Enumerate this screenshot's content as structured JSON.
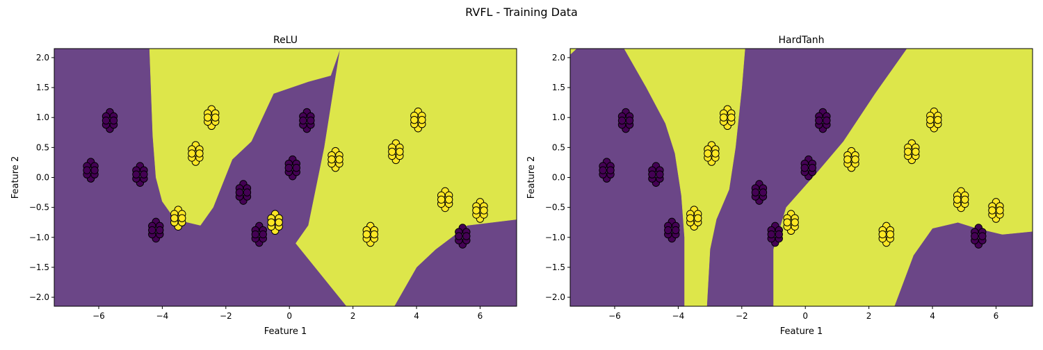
{
  "figure": {
    "suptitle": "RVFL - Training Data"
  },
  "colors": {
    "class0_region": "#6b4687",
    "class1_region": "#dde64a",
    "class0_point": "#440154",
    "class1_point": "#fde725",
    "edge": "#000000"
  },
  "chart_data": [
    {
      "type": "scatter",
      "title": "ReLU",
      "xlabel": "Feature 1",
      "ylabel": "Feature 2",
      "xlim": [
        -7.4,
        7.15
      ],
      "ylim": [
        -2.15,
        2.15
      ],
      "xticks": [
        -6,
        -4,
        -2,
        0,
        2,
        4,
        6
      ],
      "yticks": [
        -2.0,
        -1.5,
        -1.0,
        -0.5,
        0.0,
        0.5,
        1.0,
        1.5,
        2.0
      ],
      "grid": false,
      "decision_region": "filled contour: yellow = class 1, purple = class 0",
      "class1_boundary": [
        [
          -4.4,
          2.15
        ],
        [
          1.6,
          2.15
        ],
        [
          1.3,
          1.7
        ],
        [
          0.6,
          1.6
        ],
        [
          -0.5,
          1.4
        ],
        [
          -1.2,
          0.6
        ],
        [
          -1.8,
          0.3
        ],
        [
          -2.4,
          -0.5
        ],
        [
          -2.8,
          -0.8
        ],
        [
          -3.6,
          -0.7
        ],
        [
          -4.0,
          -0.4
        ],
        [
          -4.2,
          0.0
        ],
        [
          -4.3,
          0.7
        ],
        [
          -4.4,
          2.15
        ]
      ],
      "class1_boundary_2": [
        [
          1.6,
          2.15
        ],
        [
          7.15,
          2.15
        ],
        [
          7.15,
          -0.7
        ],
        [
          5.6,
          -0.8
        ],
        [
          4.6,
          -1.2
        ],
        [
          4.0,
          -1.5
        ],
        [
          3.3,
          -2.15
        ],
        [
          1.8,
          -2.15
        ],
        [
          0.2,
          -1.1
        ],
        [
          0.6,
          -0.8
        ],
        [
          1.1,
          0.5
        ],
        [
          1.4,
          1.5
        ],
        [
          1.6,
          2.15
        ]
      ],
      "clusters": [
        {
          "x": -6.25,
          "y": 0.12,
          "label": 0
        },
        {
          "x": -5.65,
          "y": 0.95,
          "label": 0
        },
        {
          "x": -4.7,
          "y": 0.05,
          "label": 0
        },
        {
          "x": -4.2,
          "y": -0.88,
          "label": 0
        },
        {
          "x": -3.5,
          "y": -0.68,
          "label": 1
        },
        {
          "x": -2.95,
          "y": 0.4,
          "label": 1
        },
        {
          "x": -2.45,
          "y": 1.0,
          "label": 1
        },
        {
          "x": -1.45,
          "y": -0.25,
          "label": 0
        },
        {
          "x": -0.95,
          "y": -0.95,
          "label": 0
        },
        {
          "x": -0.45,
          "y": -0.75,
          "label": 1
        },
        {
          "x": 0.1,
          "y": 0.16,
          "label": 0
        },
        {
          "x": 0.55,
          "y": 0.95,
          "label": 0
        },
        {
          "x": 1.45,
          "y": 0.3,
          "label": 1
        },
        {
          "x": 2.55,
          "y": -0.95,
          "label": 1
        },
        {
          "x": 3.35,
          "y": 0.43,
          "label": 1
        },
        {
          "x": 4.05,
          "y": 0.96,
          "label": 1
        },
        {
          "x": 4.9,
          "y": -0.37,
          "label": 1
        },
        {
          "x": 5.45,
          "y": -0.98,
          "label": 0
        },
        {
          "x": 6.0,
          "y": -0.55,
          "label": 1
        }
      ]
    },
    {
      "type": "scatter",
      "title": "HardTanh",
      "xlabel": "Feature 1",
      "ylabel": "Feature 2",
      "xlim": [
        -7.4,
        7.15
      ],
      "ylim": [
        -2.15,
        2.15
      ],
      "xticks": [
        -6,
        -4,
        -2,
        0,
        2,
        4,
        6
      ],
      "yticks": [
        -2.0,
        -1.5,
        -1.0,
        -0.5,
        0.0,
        0.5,
        1.0,
        1.5,
        2.0
      ],
      "grid": false,
      "decision_region": "filled contour: yellow = class 1, purple = class 0",
      "class1_boundary": [
        [
          -5.7,
          2.15
        ],
        [
          -1.9,
          2.15
        ],
        [
          -2.0,
          1.5
        ],
        [
          -2.2,
          0.5
        ],
        [
          -2.4,
          -0.2
        ],
        [
          -2.8,
          -0.7
        ],
        [
          -3.0,
          -1.2
        ],
        [
          -3.1,
          -2.15
        ],
        [
          -3.8,
          -2.15
        ],
        [
          -3.8,
          -1.0
        ],
        [
          -3.9,
          -0.3
        ],
        [
          -4.1,
          0.4
        ],
        [
          -4.4,
          0.9
        ],
        [
          -5.0,
          1.5
        ],
        [
          -5.7,
          2.15
        ]
      ],
      "class1_boundary_2": [
        [
          3.2,
          2.15
        ],
        [
          7.15,
          2.15
        ],
        [
          7.15,
          -0.9
        ],
        [
          6.2,
          -0.95
        ],
        [
          5.4,
          -0.85
        ],
        [
          4.8,
          -0.75
        ],
        [
          4.0,
          -0.85
        ],
        [
          3.4,
          -1.3
        ],
        [
          2.8,
          -2.15
        ],
        [
          -1.0,
          -2.15
        ],
        [
          -1.0,
          -1.2
        ],
        [
          -0.6,
          -0.5
        ],
        [
          0.4,
          0.1
        ],
        [
          1.2,
          0.6
        ],
        [
          2.2,
          1.4
        ],
        [
          3.2,
          2.15
        ]
      ],
      "class1_boundary_3": [
        [
          -7.4,
          2.15
        ],
        [
          -7.2,
          2.15
        ],
        [
          -7.4,
          2.05
        ]
      ],
      "clusters": [
        {
          "x": -6.25,
          "y": 0.12,
          "label": 0
        },
        {
          "x": -5.65,
          "y": 0.95,
          "label": 0
        },
        {
          "x": -4.7,
          "y": 0.05,
          "label": 0
        },
        {
          "x": -4.2,
          "y": -0.88,
          "label": 0
        },
        {
          "x": -3.5,
          "y": -0.68,
          "label": 1
        },
        {
          "x": -2.95,
          "y": 0.4,
          "label": 1
        },
        {
          "x": -2.45,
          "y": 1.0,
          "label": 1
        },
        {
          "x": -1.45,
          "y": -0.25,
          "label": 0
        },
        {
          "x": -0.95,
          "y": -0.95,
          "label": 0
        },
        {
          "x": -0.45,
          "y": -0.75,
          "label": 1
        },
        {
          "x": 0.1,
          "y": 0.16,
          "label": 0
        },
        {
          "x": 0.55,
          "y": 0.95,
          "label": 0
        },
        {
          "x": 1.45,
          "y": 0.3,
          "label": 1
        },
        {
          "x": 2.55,
          "y": -0.95,
          "label": 1
        },
        {
          "x": 3.35,
          "y": 0.43,
          "label": 1
        },
        {
          "x": 4.05,
          "y": 0.96,
          "label": 1
        },
        {
          "x": 4.9,
          "y": -0.37,
          "label": 1
        },
        {
          "x": 5.45,
          "y": -0.98,
          "label": 0
        },
        {
          "x": 6.0,
          "y": -0.55,
          "label": 1
        }
      ]
    }
  ]
}
